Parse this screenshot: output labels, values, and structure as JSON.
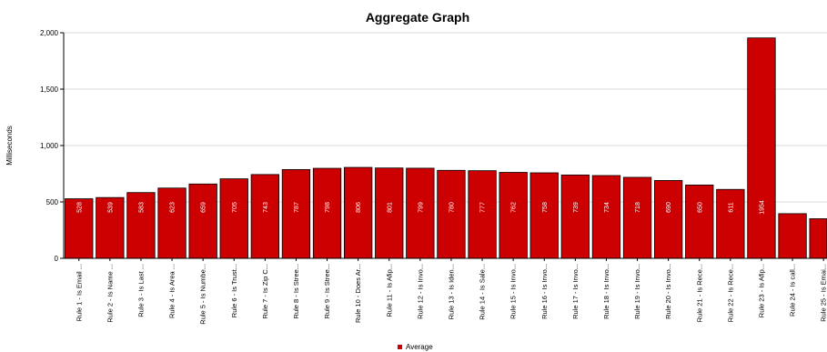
{
  "chart_data": {
    "type": "bar",
    "title": "Aggregate Graph",
    "ylabel": "Milliseconds",
    "xlabel": "",
    "ylim": [
      0,
      2000
    ],
    "yticks": [
      0,
      500,
      1000,
      1500,
      2000
    ],
    "ytick_labels": [
      "0",
      "500",
      "1,000",
      "1,500",
      "2,000"
    ],
    "grid": true,
    "legend_position": "bottom-center",
    "bar_color": "#cc0000",
    "categories": [
      "Rule 1 - Is Email ...",
      "Rule 2 - Is Name ...",
      "Rule 3 - Is Last ...",
      "Rule 4 - Is Area ...",
      "Rule 5 - Is Numbe...",
      "Rule 6 - Is Trust...",
      "Rule 7 - Is Zip C...",
      "Rule 8 - Is Stree...",
      "Rule 9 - Is Stree...",
      "Rule 10 - Does Ar...",
      "Rule 11 - Is Afip...",
      "Rule 12 - Is Invo...",
      "Rule 13 - Is Iden...",
      "Rule 14 - Is Sale...",
      "Rule 15 - Is Invo...",
      "Rule 16 - Is Invo...",
      "Rule 17 - Is Invo...",
      "Rule 18 - Is Invo...",
      "Rule 19 - Is Invo...",
      "Rule 20 - Is Invo...",
      "Rule 21 - Is Rece...",
      "Rule 22 - Is Rece...",
      "Rule 23 - Is Afip...",
      "Rule 24 - Is call...",
      "Rule 25 - Is Emai..."
    ],
    "series": [
      {
        "name": "Average",
        "values": [
          528,
          539,
          583,
          623,
          659,
          705,
          743,
          787,
          798,
          806,
          801,
          799,
          780,
          777,
          762,
          758,
          739,
          734,
          718,
          690,
          650,
          611,
          1954,
          396,
          351
        ]
      }
    ]
  }
}
